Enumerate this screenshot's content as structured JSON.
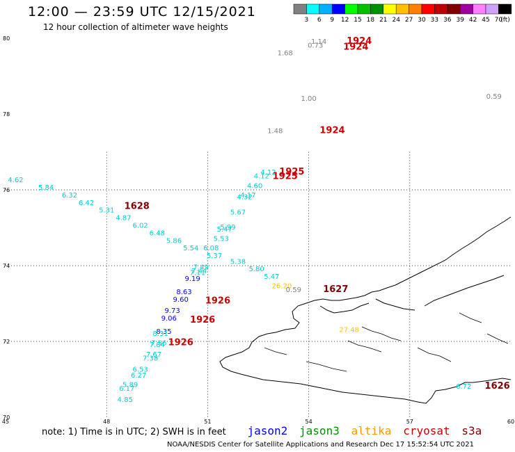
{
  "header": {
    "title": "12:00 — 23:59 UTC 12/15/2021",
    "subtitle": "12 hour collection of altimeter wave heights"
  },
  "colorbar": {
    "unit": "(ft)",
    "colors": [
      "#808080",
      "#00ffff",
      "#00b0ff",
      "#0000ff",
      "#00ff00",
      "#00c000",
      "#009000",
      "#ffff00",
      "#ffc000",
      "#ff8000",
      "#ff0000",
      "#c00000",
      "#800000",
      "#a000a0",
      "#ff80ff",
      "#d0a0ff",
      "#000000"
    ],
    "labels": [
      "3",
      "6",
      "9",
      "12",
      "15",
      "18",
      "21",
      "24",
      "27",
      "30",
      "33",
      "36",
      "39",
      "42",
      "45",
      "70"
    ]
  },
  "axes": {
    "lon_ticks": [
      "45",
      "48",
      "51",
      "54",
      "57",
      "60"
    ],
    "lat_ticks": [
      "80",
      "78",
      "76",
      "74",
      "72",
      "70"
    ]
  },
  "legend": {
    "note": "note:  1) Time is in UTC;  2) SWH is in feet",
    "satellites": [
      {
        "name": "jason2",
        "color": "#0000ff"
      },
      {
        "name": "jason3",
        "color": "#009000"
      },
      {
        "name": "altika",
        "color": "#ff9900"
      },
      {
        "name": "cryosat",
        "color": "#cc0000"
      },
      {
        "name": "s3a",
        "color": "#800000"
      }
    ]
  },
  "footer": "NOAA/NESDIS Center for Satellite Applications and Research     Dec 17 15:52:54 UTC 2021",
  "observations": [
    {
      "lon": 45.3,
      "lat": 76.2,
      "v": "4.62",
      "c": "#00ced1"
    },
    {
      "lon": 46.2,
      "lat": 76.0,
      "v": "5.84",
      "c": "#00ced1"
    },
    {
      "lon": 46.9,
      "lat": 75.8,
      "v": "6.32",
      "c": "#00ced1"
    },
    {
      "lon": 47.4,
      "lat": 75.6,
      "v": "6.42",
      "c": "#00ced1"
    },
    {
      "lon": 48.0,
      "lat": 75.4,
      "v": "5.31",
      "c": "#00ced1"
    },
    {
      "lon": 48.5,
      "lat": 75.2,
      "v": "4.87",
      "c": "#00ced1"
    },
    {
      "lon": 49.0,
      "lat": 75.0,
      "v": "6.02",
      "c": "#00ced1"
    },
    {
      "lon": 49.5,
      "lat": 74.8,
      "v": "6.48",
      "c": "#00ced1"
    },
    {
      "lon": 50.0,
      "lat": 74.6,
      "v": "5.86",
      "c": "#00ced1"
    },
    {
      "lon": 50.5,
      "lat": 74.4,
      "v": "5.54",
      "c": "#00ced1"
    },
    {
      "lon": 51.1,
      "lat": 74.4,
      "v": "6.08",
      "c": "#00ced1"
    },
    {
      "lon": 51.2,
      "lat": 74.2,
      "v": "5.37",
      "c": "#00ced1"
    },
    {
      "lon": 51.4,
      "lat": 74.65,
      "v": "5.53",
      "c": "#00ced1"
    },
    {
      "lon": 51.5,
      "lat": 74.9,
      "v": "5.47",
      "c": "#00ced1"
    },
    {
      "lon": 51.6,
      "lat": 74.95,
      "v": "5.99",
      "c": "#00ced1"
    },
    {
      "lon": 51.9,
      "lat": 75.35,
      "v": "5.67",
      "c": "#00ced1"
    },
    {
      "lon": 52.1,
      "lat": 75.75,
      "v": "4.32",
      "c": "#00ced1"
    },
    {
      "lon": 52.2,
      "lat": 75.8,
      "v": "4.17",
      "c": "#00ced1"
    },
    {
      "lon": 52.4,
      "lat": 76.05,
      "v": "4.60",
      "c": "#00ced1"
    },
    {
      "lon": 52.6,
      "lat": 76.3,
      "v": "4.12",
      "c": "#00ced1"
    },
    {
      "lon": 52.8,
      "lat": 76.4,
      "v": "4.12",
      "c": "#00ced1"
    },
    {
      "lon": 51.9,
      "lat": 74.05,
      "v": "5.38",
      "c": "#00ced1"
    },
    {
      "lon": 52.45,
      "lat": 73.85,
      "v": "5.80",
      "c": "#00ced1"
    },
    {
      "lon": 52.9,
      "lat": 73.65,
      "v": "5.47",
      "c": "#00ced1"
    },
    {
      "lon": 50.75,
      "lat": 73.8,
      "v": "7.44",
      "c": "#00ced1"
    },
    {
      "lon": 50.7,
      "lat": 73.75,
      "v": "7.11",
      "c": "#00ced1"
    },
    {
      "lon": 50.8,
      "lat": 73.9,
      "v": "7.49",
      "c": "#00ced1"
    },
    {
      "lon": 50.55,
      "lat": 73.6,
      "v": "9.19",
      "c": "#0000ff"
    },
    {
      "lon": 50.3,
      "lat": 73.25,
      "v": "8.63",
      "c": "#0000ff"
    },
    {
      "lon": 50.2,
      "lat": 73.05,
      "v": "9.60",
      "c": "#0000ff"
    },
    {
      "lon": 49.95,
      "lat": 72.75,
      "v": "9.73",
      "c": "#0000ff"
    },
    {
      "lon": 49.85,
      "lat": 72.55,
      "v": "9.06",
      "c": "#0000ff"
    },
    {
      "lon": 49.7,
      "lat": 72.2,
      "v": "8.35",
      "c": "#0000ff"
    },
    {
      "lon": 49.6,
      "lat": 72.15,
      "v": "8.31",
      "c": "#00ced1"
    },
    {
      "lon": 49.55,
      "lat": 71.9,
      "v": "7.56",
      "c": "#00ced1"
    },
    {
      "lon": 49.5,
      "lat": 71.85,
      "v": "7.84",
      "c": "#00ced1"
    },
    {
      "lon": 49.4,
      "lat": 71.6,
      "v": "7.67",
      "c": "#00ced1"
    },
    {
      "lon": 49.3,
      "lat": 71.5,
      "v": "7.38",
      "c": "#00ced1"
    },
    {
      "lon": 49.0,
      "lat": 71.2,
      "v": "6.53",
      "c": "#00ced1"
    },
    {
      "lon": 48.95,
      "lat": 71.05,
      "v": "6.27",
      "c": "#00ced1"
    },
    {
      "lon": 48.7,
      "lat": 70.8,
      "v": "5.89",
      "c": "#00ced1"
    },
    {
      "lon": 48.6,
      "lat": 70.7,
      "v": "6.17",
      "c": "#00ced1"
    },
    {
      "lon": 48.55,
      "lat": 70.4,
      "v": "4.85",
      "c": "#00ced1"
    },
    {
      "lon": 53.2,
      "lat": 73.4,
      "v": "26.20",
      "c": "#ffc000"
    },
    {
      "lon": 55.2,
      "lat": 72.25,
      "v": "27.48",
      "c": "#ffc000"
    },
    {
      "lon": 53.55,
      "lat": 73.3,
      "v": "0.59",
      "c": "#808080"
    },
    {
      "lon": 53.3,
      "lat": 79.55,
      "v": "1.68",
      "c": "#808080"
    },
    {
      "lon": 54.2,
      "lat": 79.75,
      "v": "0.73",
      "c": "#808080"
    },
    {
      "lon": 54.3,
      "lat": 79.85,
      "v": "1.14",
      "c": "#808080"
    },
    {
      "lon": 54.0,
      "lat": 78.35,
      "v": "1.00",
      "c": "#808080"
    },
    {
      "lon": 59.5,
      "lat": 78.4,
      "v": "0.59",
      "c": "#808080"
    },
    {
      "lon": 53.0,
      "lat": 77.5,
      "v": "1.48",
      "c": "#808080"
    },
    {
      "lon": 58.6,
      "lat": 70.75,
      "v": "6.72",
      "c": "#00ced1"
    }
  ],
  "pass_labels": [
    {
      "lon": 48.9,
      "lat": 75.5,
      "v": "1628",
      "c": "#800000"
    },
    {
      "lon": 51.3,
      "lat": 73.0,
      "v": "1926",
      "c": "#cc0000"
    },
    {
      "lon": 50.85,
      "lat": 72.5,
      "v": "1926",
      "c": "#cc0000"
    },
    {
      "lon": 50.2,
      "lat": 71.9,
      "v": "1926",
      "c": "#cc0000"
    },
    {
      "lon": 53.5,
      "lat": 76.4,
      "v": "1925",
      "c": "#cc0000"
    },
    {
      "lon": 53.3,
      "lat": 76.28,
      "v": "1925",
      "c": "#cc0000"
    },
    {
      "lon": 55.5,
      "lat": 79.85,
      "v": "1924",
      "c": "#cc0000"
    },
    {
      "lon": 55.4,
      "lat": 79.7,
      "v": "1924",
      "c": "#cc0000"
    },
    {
      "lon": 54.7,
      "lat": 77.5,
      "v": "1924",
      "c": "#cc0000"
    },
    {
      "lon": 60.2,
      "lat": 78.4,
      "v": "1",
      "c": "#cc0000"
    },
    {
      "lon": 54.8,
      "lat": 73.3,
      "v": "1627",
      "c": "#800000"
    },
    {
      "lon": 59.6,
      "lat": 70.75,
      "v": "1626",
      "c": "#800000"
    }
  ]
}
